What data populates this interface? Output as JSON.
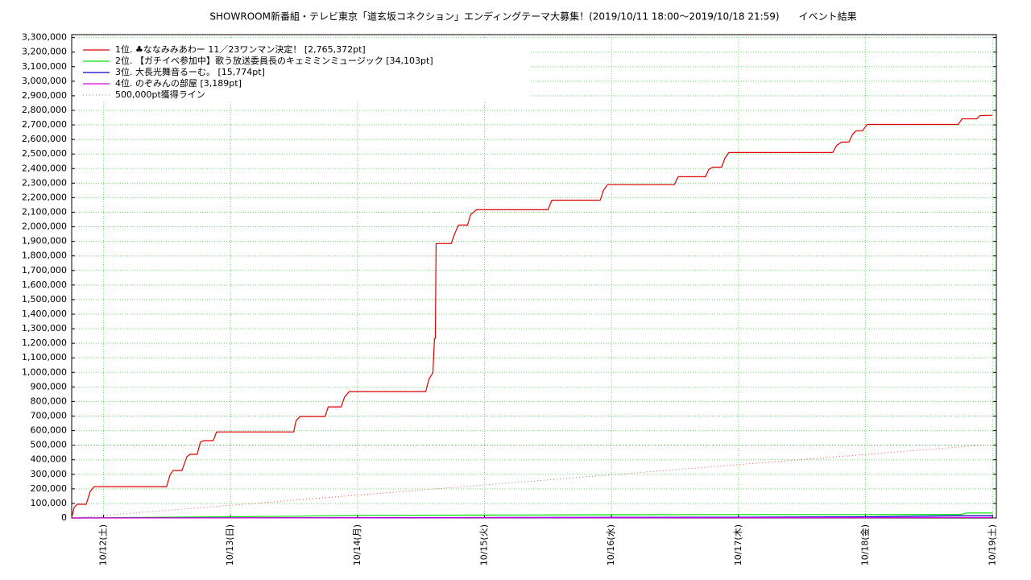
{
  "chart_data": {
    "type": "line",
    "title": "SHOWROOM新番組・テレビ東京「道玄坂コネクション」エンディングテーマ大募集！(2019/10/11 18:00～2019/10/18 21:59)　　イベント結果",
    "xlim": [
      11.75,
      19.03
    ],
    "xticks": [
      {
        "value": 12,
        "label": "10/12(土)"
      },
      {
        "value": 13,
        "label": "10/13(日)"
      },
      {
        "value": 14,
        "label": "10/14(月)"
      },
      {
        "value": 15,
        "label": "10/15(火)"
      },
      {
        "value": 16,
        "label": "10/16(水)"
      },
      {
        "value": 17,
        "label": "10/17(木)"
      },
      {
        "value": 18,
        "label": "10/18(金)"
      },
      {
        "value": 19,
        "label": "10/19(土)"
      }
    ],
    "ylim": [
      0,
      3320000
    ],
    "yticks": [
      0,
      {
        "value": 100000,
        "label": "100,000"
      },
      {
        "value": 200000,
        "label": "200,000"
      },
      {
        "value": 300000,
        "label": "300,000"
      },
      {
        "value": 400000,
        "label": "400,000"
      },
      {
        "value": 500000,
        "label": "500,000"
      },
      {
        "value": 600000,
        "label": "600,000"
      },
      {
        "value": 700000,
        "label": "700,000"
      },
      {
        "value": 800000,
        "label": "800,000"
      },
      {
        "value": 900000,
        "label": "900,000"
      },
      {
        "value": 1000000,
        "label": "1,000,000"
      },
      {
        "value": 1100000,
        "label": "1,100,000"
      },
      {
        "value": 1200000,
        "label": "1,200,000"
      },
      {
        "value": 1300000,
        "label": "1,300,000"
      },
      {
        "value": 1400000,
        "label": "1,400,000"
      },
      {
        "value": 1500000,
        "label": "1,500,000"
      },
      {
        "value": 1600000,
        "label": "1,600,000"
      },
      {
        "value": 1700000,
        "label": "1,700,000"
      },
      {
        "value": 1800000,
        "label": "1,800,000"
      },
      {
        "value": 1900000,
        "label": "1,900,000"
      },
      {
        "value": 2000000,
        "label": "2,000,000"
      },
      {
        "value": 2100000,
        "label": "2,100,000"
      },
      {
        "value": 2200000,
        "label": "2,200,000"
      },
      {
        "value": 2300000,
        "label": "2,300,000"
      },
      {
        "value": 2400000,
        "label": "2,400,000"
      },
      {
        "value": 2500000,
        "label": "2,500,000"
      },
      {
        "value": 2600000,
        "label": "2,600,000"
      },
      {
        "value": 2700000,
        "label": "2,700,000"
      },
      {
        "value": 2800000,
        "label": "2,800,000"
      },
      {
        "value": 2900000,
        "label": "2,900,000"
      },
      {
        "value": 3000000,
        "label": "3,000,000"
      },
      {
        "value": 3100000,
        "label": "3,100,000"
      },
      {
        "value": 3200000,
        "label": "3,200,000"
      },
      {
        "value": 3300000,
        "label": "3,300,000"
      }
    ],
    "grid": true,
    "grid_color": "#66dd66",
    "legend": "upper left",
    "hline": 500000,
    "series": [
      {
        "name": "1位. ♣ななみみあわー 11／23ワンマン決定！ [2,765,372pt]",
        "color": "#dd0000",
        "linestyle": "solid",
        "x": [
          11.75,
          11.769,
          11.794,
          11.864,
          11.896,
          11.927,
          12.497,
          12.523,
          12.548,
          12.618,
          12.656,
          12.681,
          12.738,
          12.763,
          12.789,
          12.865,
          12.89,
          13.498,
          13.517,
          13.549,
          13.745,
          13.77,
          13.872,
          13.897,
          13.935,
          14.537,
          14.562,
          14.594,
          14.606,
          14.613,
          14.619,
          14.739,
          14.765,
          14.796,
          14.866,
          14.891,
          14.936,
          15.499,
          15.531,
          15.911,
          15.936,
          15.968,
          16.494,
          16.525,
          16.74,
          16.766,
          16.798,
          16.867,
          16.893,
          16.924,
          17.741,
          17.773,
          17.811,
          17.868,
          17.9,
          17.925,
          17.975,
          18.013,
          18.729,
          18.761,
          18.875,
          18.9,
          19.0
        ],
        "values": [
          0,
          72000,
          94000,
          94000,
          182000,
          215000,
          215000,
          293000,
          326000,
          326000,
          420000,
          437000,
          437000,
          520000,
          531000,
          531000,
          591000,
          591000,
          669000,
          697000,
          697000,
          763000,
          763000,
          829000,
          868000,
          868000,
          951000,
          1000000,
          1233000,
          1233000,
          1885000,
          1885000,
          1951000,
          2012000,
          2012000,
          2084000,
          2117000,
          2117000,
          2183000,
          2183000,
          2250000,
          2289000,
          2289000,
          2344000,
          2344000,
          2394000,
          2410000,
          2410000,
          2471000,
          2510000,
          2510000,
          2559000,
          2582000,
          2582000,
          2637000,
          2659000,
          2659000,
          2703000,
          2703000,
          2742000,
          2742000,
          2764000,
          2765372
        ]
      },
      {
        "name": "2位. 【ガチイベ参加中】歌う放送委員長のキェミミンミュージック [34,103pt]",
        "color": "#00dd00",
        "linestyle": "solid",
        "x": [
          11.75,
          12.5,
          13.5,
          14.0,
          15.0,
          16.0,
          17.0,
          18.0,
          18.75,
          18.8,
          19.0
        ],
        "values": [
          0,
          5000,
          12000,
          18000,
          20000,
          22000,
          23000,
          23000,
          24000,
          34103,
          34103
        ]
      },
      {
        "name": "3位. 大長光舞音るーむ。 [15,774pt]",
        "color": "#0000cc",
        "linestyle": "solid",
        "x": [
          11.75,
          17.0,
          18.0,
          18.8,
          19.0
        ],
        "values": [
          0,
          5000,
          8000,
          15774,
          15774
        ]
      },
      {
        "name": "4位. のぞみんの部屋 [3,189pt]",
        "color": "#dd00dd",
        "linestyle": "solid",
        "x": [
          11.75,
          18.0,
          19.0
        ],
        "values": [
          0,
          2000,
          3189
        ]
      },
      {
        "name": "500,000pt獲得ライン",
        "color": "#dd3333",
        "linestyle": "dotted",
        "x": [
          11.75,
          18.917
        ],
        "values": [
          0,
          500000
        ]
      }
    ]
  }
}
